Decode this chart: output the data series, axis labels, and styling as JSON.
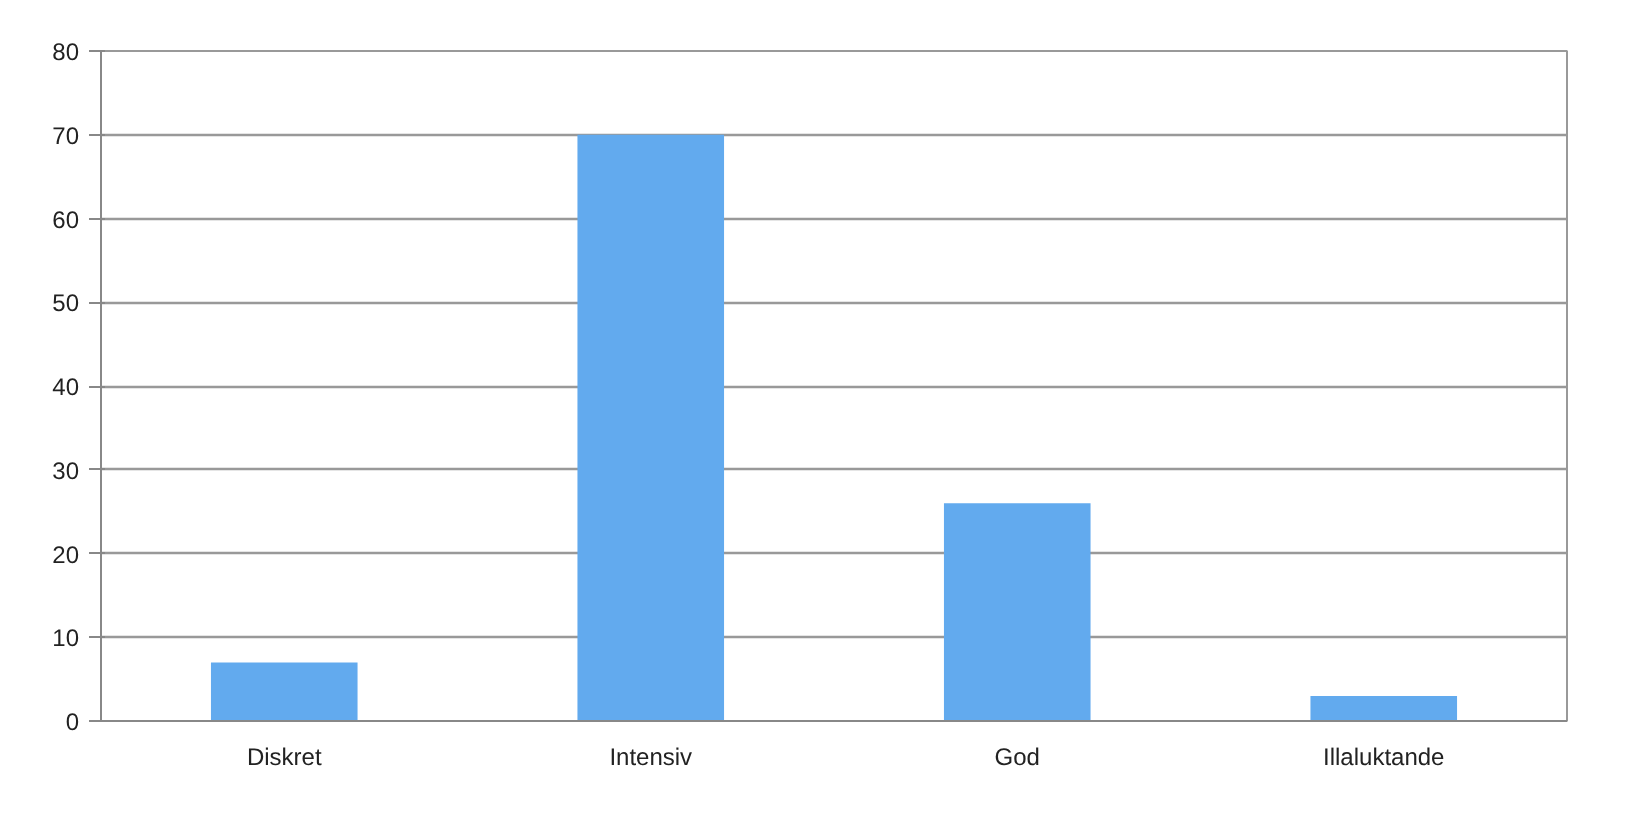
{
  "chart_data": {
    "type": "bar",
    "categories": [
      "Diskret",
      "Intensiv",
      "God",
      "Illaluktande"
    ],
    "values": [
      7,
      70,
      26,
      3
    ],
    "color": "#62aaee",
    "ylim": [
      0,
      80
    ],
    "yticks": [
      0,
      10,
      20,
      30,
      40,
      50,
      60,
      70,
      80
    ],
    "grid": "y"
  }
}
